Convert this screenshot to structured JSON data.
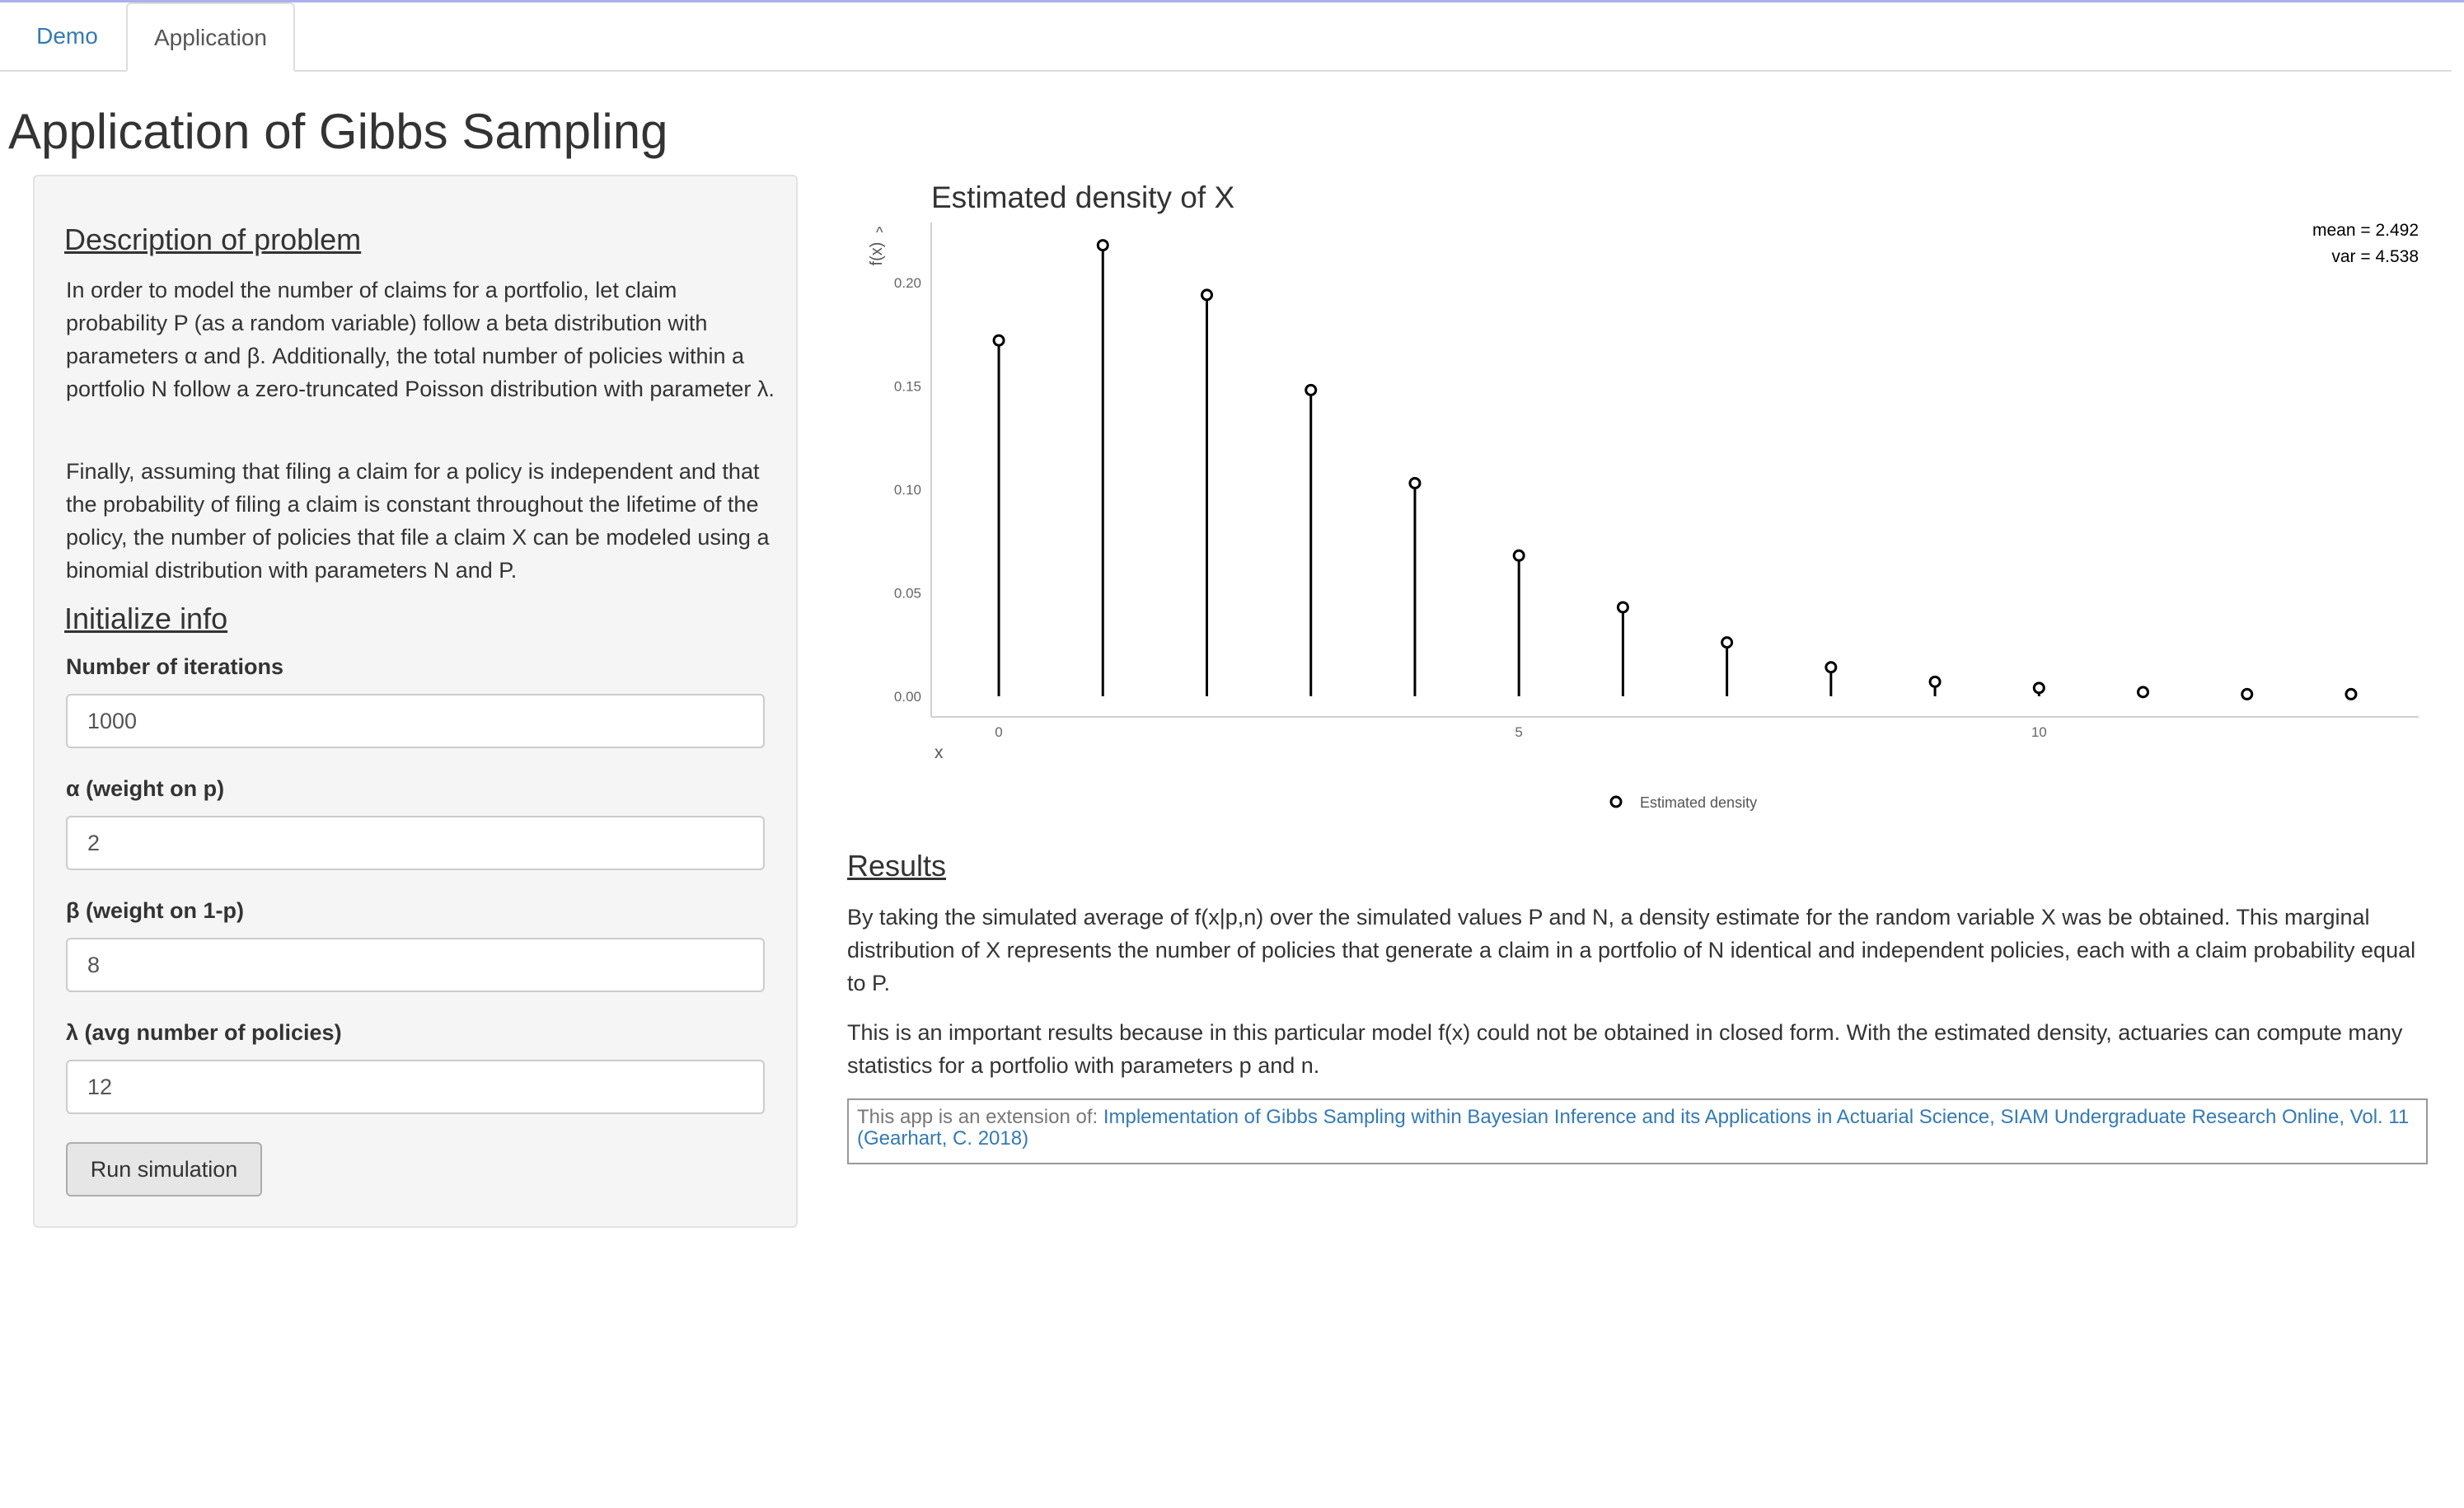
{
  "tabs": [
    {
      "label": "Demo",
      "active": false
    },
    {
      "label": "Application",
      "active": true
    }
  ],
  "page_title": "Application of Gibbs Sampling",
  "sidebar": {
    "description_heading": "Description of problem",
    "description_p1": "In order to model the number of claims for a portfolio, let claim probability P (as a random variable) follow a beta distribution with parameters α and β. Additionally, the total number of policies within a portfolio N follow a zero-truncated Poisson distribution with parameter λ.",
    "description_p2": "Finally, assuming that filing a claim for a policy is independent and that the probability of filing a claim is constant throughout the lifetime of the policy, the number of policies that file a claim X can be modeled using a binomial distribution with parameters N and P.",
    "init_heading": "Initialize info",
    "fields": [
      {
        "label": "Number of iterations",
        "value": "1000"
      },
      {
        "label": "α (weight on p)",
        "value": "2"
      },
      {
        "label": "β (weight on 1-p)",
        "value": "8"
      },
      {
        "label": "λ (avg number of policies)",
        "value": "12"
      }
    ],
    "run_button": "Run simulation"
  },
  "chart_data": {
    "type": "scatter",
    "style": "lollipop",
    "title": "Estimated density of X",
    "xlabel": "x",
    "ylabel": "f(x)",
    "ylabel_hat": "^",
    "x": [
      0,
      1,
      2,
      3,
      4,
      5,
      6,
      7,
      8,
      9,
      10,
      11,
      12,
      13
    ],
    "series": [
      {
        "name": "Estimated density",
        "values": [
          0.172,
          0.218,
          0.194,
          0.148,
          0.103,
          0.068,
          0.043,
          0.026,
          0.014,
          0.007,
          0.004,
          0.002,
          0.001,
          0.001
        ]
      }
    ],
    "xticks": [
      0,
      5,
      10
    ],
    "yticks": [
      "0.00",
      "0.05",
      "0.10",
      "0.15",
      "0.20"
    ],
    "xlim": [
      -0.65,
      13.65
    ],
    "ylim": [
      -0.01,
      0.229
    ],
    "annotation_mean": "mean = 2.492",
    "annotation_var": "var = 4.538",
    "legend_position": "bottom",
    "grid": false
  },
  "results": {
    "heading": "Results",
    "p1": "By taking the simulated average of f(x|p,n) over the simulated values P and N, a density estimate for the random variable X was be obtained. This marginal distribution of X represents the number of policies that generate a claim in a portfolio of N identical and independent policies, each with a claim probability equal to P.",
    "p2": "This is an important results because in this particular model f(x) could not be obtained in closed form. With the estimated density, actuaries can compute many statistics for a portfolio with parameters p and n.",
    "citation_prefix": "This app is an extension of: ",
    "citation_link": "Implementation of Gibbs Sampling within Bayesian Inference and its Applications in Actuarial Science, SIAM Undergraduate Research Online, Vol. 11 (Gearhart, C. 2018)"
  }
}
